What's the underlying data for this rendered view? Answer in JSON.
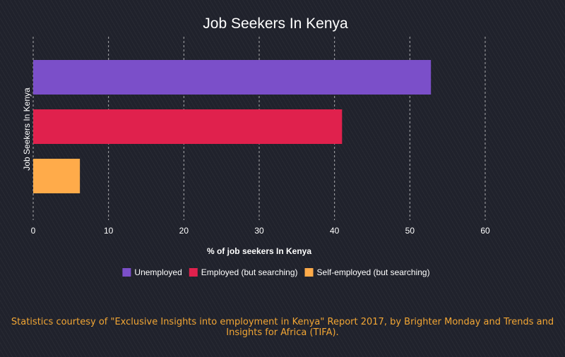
{
  "chart_data": {
    "type": "bar",
    "orientation": "horizontal",
    "title": "Job Seekers In Kenya",
    "xlabel": "% of job seekers In Kenya",
    "ylabel": "Job Seekers In Kenya",
    "xlim": [
      0,
      60
    ],
    "xticks": [
      "0",
      "10",
      "20",
      "30",
      "40",
      "50",
      "60"
    ],
    "grid": "vertical dashed",
    "legend_position": "bottom",
    "series": [
      {
        "name": "Unemployed",
        "value": 52.8,
        "color": "#7b4fc9"
      },
      {
        "name": "Employed (but searching)",
        "value": 41.0,
        "color": "#e0214d"
      },
      {
        "name": "Self-employed (but searching)",
        "value": 6.2,
        "color": "#ffab4a"
      }
    ]
  },
  "footnote": "Statistics courtesy of \"Exclusive Insights into employment in Kenya\" Report 2017, by Brighter Monday and Trends and Insights for Africa (TIFA).",
  "colors": {
    "background": "#20222c",
    "footnote_text": "#f2a634"
  }
}
